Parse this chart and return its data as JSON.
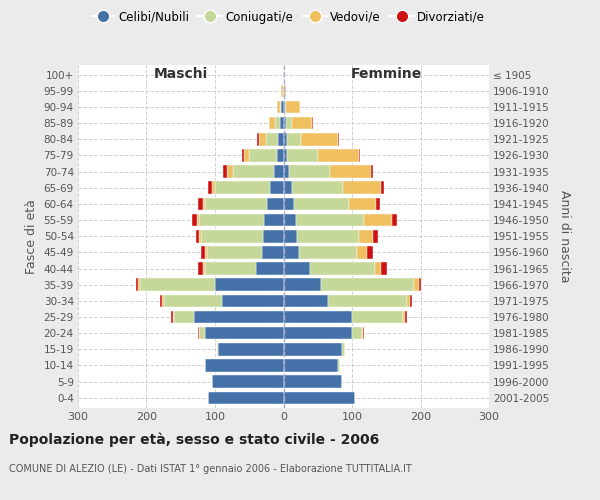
{
  "age_groups": [
    "100+",
    "95-99",
    "90-94",
    "85-89",
    "80-84",
    "75-79",
    "70-74",
    "65-69",
    "60-64",
    "55-59",
    "50-54",
    "45-49",
    "40-44",
    "35-39",
    "30-34",
    "25-29",
    "20-24",
    "15-19",
    "10-14",
    "5-9",
    "0-4"
  ],
  "birth_years": [
    "≤ 1905",
    "1906-1910",
    "1911-1915",
    "1916-1920",
    "1921-1925",
    "1926-1930",
    "1931-1935",
    "1936-1940",
    "1941-1945",
    "1946-1950",
    "1951-1955",
    "1956-1960",
    "1961-1965",
    "1966-1970",
    "1971-1975",
    "1976-1980",
    "1981-1985",
    "1986-1990",
    "1991-1995",
    "1996-2000",
    "2001-2005"
  ],
  "maschi_celibe": [
    1,
    1,
    3,
    5,
    8,
    10,
    14,
    20,
    24,
    28,
    30,
    32,
    40,
    100,
    90,
    130,
    115,
    95,
    115,
    105,
    110
  ],
  "maschi_coniugato": [
    0,
    0,
    2,
    8,
    18,
    40,
    60,
    80,
    90,
    95,
    90,
    80,
    75,
    110,
    85,
    30,
    8,
    2,
    0,
    0,
    0
  ],
  "maschi_vedovo": [
    0,
    2,
    5,
    8,
    10,
    8,
    8,
    5,
    4,
    4,
    3,
    2,
    2,
    2,
    2,
    2,
    1,
    0,
    0,
    0,
    0
  ],
  "maschi_divorziato": [
    0,
    0,
    0,
    0,
    2,
    3,
    6,
    5,
    7,
    6,
    5,
    6,
    8,
    3,
    3,
    2,
    1,
    0,
    0,
    0,
    0
  ],
  "femmine_nubile": [
    0,
    1,
    2,
    4,
    5,
    5,
    8,
    12,
    15,
    18,
    20,
    22,
    38,
    55,
    65,
    100,
    100,
    85,
    80,
    85,
    105
  ],
  "femmine_coniugata": [
    0,
    0,
    2,
    8,
    20,
    45,
    60,
    75,
    80,
    100,
    90,
    85,
    95,
    135,
    115,
    75,
    15,
    5,
    2,
    0,
    0
  ],
  "femmine_vedova": [
    1,
    3,
    20,
    30,
    55,
    60,
    60,
    55,
    40,
    40,
    20,
    15,
    10,
    8,
    5,
    3,
    1,
    0,
    0,
    0,
    0
  ],
  "femmine_divorziata": [
    0,
    0,
    0,
    1,
    1,
    2,
    3,
    4,
    6,
    7,
    8,
    8,
    8,
    3,
    3,
    2,
    1,
    0,
    0,
    0,
    0
  ],
  "color_celibe": "#4472a8",
  "color_coniugato": "#c5d89a",
  "color_vedovo": "#f0c060",
  "color_divorziato": "#cc1111",
  "legend_labels": [
    "Celibi/Nubili",
    "Coniugati/e",
    "Vedovi/e",
    "Divorziati/e"
  ],
  "title": "Popolazione per età, sesso e stato civile - 2006",
  "subtitle": "COMUNE DI ALEZIO (LE) - Dati ISTAT 1° gennaio 2006 - Elaborazione TUTTITALIA.IT",
  "ylabel_left": "Fasce di età",
  "ylabel_right": "Anni di nascita",
  "header_maschi": "Maschi",
  "header_femmine": "Femmine",
  "xlim": 300,
  "bg_color": "#ebebeb",
  "plot_bg": "#ffffff",
  "grid_color": "#cccccc"
}
